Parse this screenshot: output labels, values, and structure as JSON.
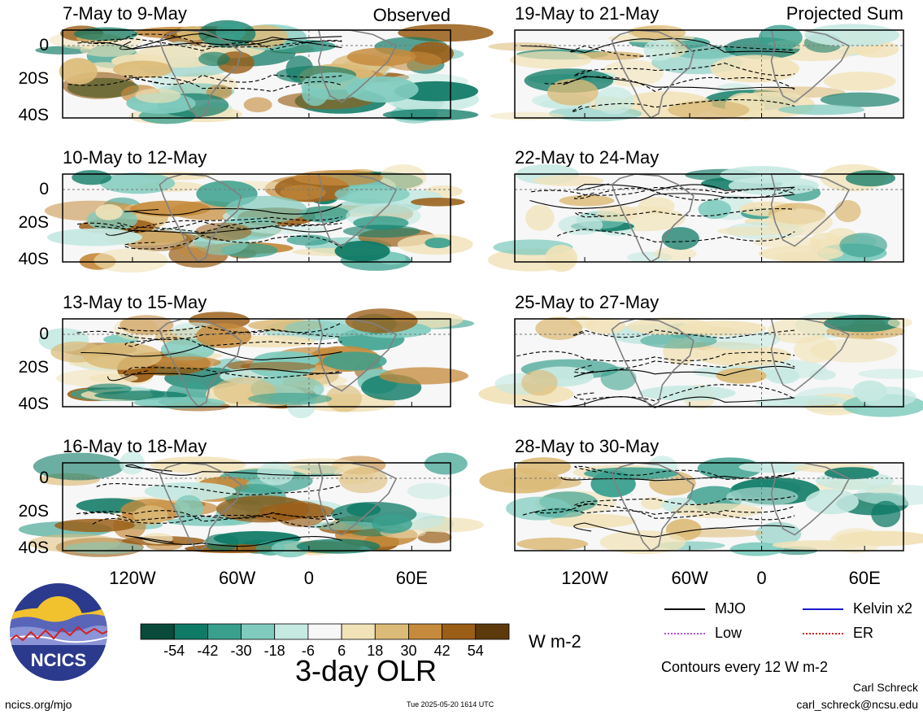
{
  "chart_data": {
    "type": "heatmap",
    "title": "3-day OLR",
    "units": "W m-2",
    "contour_note": "Contours every 12 W m-2",
    "x_ticks": [
      "120W",
      "60W",
      "0",
      "60E"
    ],
    "y_ticks": [
      "0",
      "20S",
      "40S"
    ],
    "ylim": [
      "10N",
      "40S"
    ],
    "xlim": [
      "150W",
      "80E"
    ],
    "colorbar": {
      "levels": [
        "-54",
        "-42",
        "-30",
        "-18",
        "-6",
        "6",
        "18",
        "30",
        "42",
        "54"
      ],
      "colors": [
        "#0a4a3a",
        "#0f7a66",
        "#3aa08e",
        "#80cbbe",
        "#c6e9e2",
        "#f7f7f7",
        "#f1e2b8",
        "#dcbb78",
        "#c58a3c",
        "#9a5e17",
        "#5d3a0c"
      ]
    },
    "observed_label": "Observed",
    "projected_label": "Projected Sum",
    "panels_observed": [
      {
        "title": "7-May to 9-May"
      },
      {
        "title": "10-May to 12-May"
      },
      {
        "title": "13-May to 15-May"
      },
      {
        "title": "16-May to 18-May"
      }
    ],
    "panels_projected": [
      {
        "title": "19-May to 21-May"
      },
      {
        "title": "22-May to 24-May"
      },
      {
        "title": "25-May to 27-May"
      },
      {
        "title": "28-May to 30-May"
      }
    ],
    "legend": [
      {
        "label": "MJO",
        "color": "#000000"
      },
      {
        "label": "Kelvin x2",
        "color": "#1a1acc"
      },
      {
        "label": "Low",
        "color": "#b04cd8"
      },
      {
        "label": "ER",
        "color": "#d42020"
      }
    ]
  },
  "logo": {
    "text": "NCICS",
    "colors": {
      "sky": "#2b3a8c",
      "sun": "#f2c12e",
      "land": "#6a78c8",
      "ring": "#ffffff"
    }
  },
  "footer": {
    "site": "ncics.org/mjo",
    "timestamp": "Tue 2025-05-20 1614 UTC",
    "author": "Carl Schreck",
    "email": "carl_schreck@ncsu.edu"
  }
}
